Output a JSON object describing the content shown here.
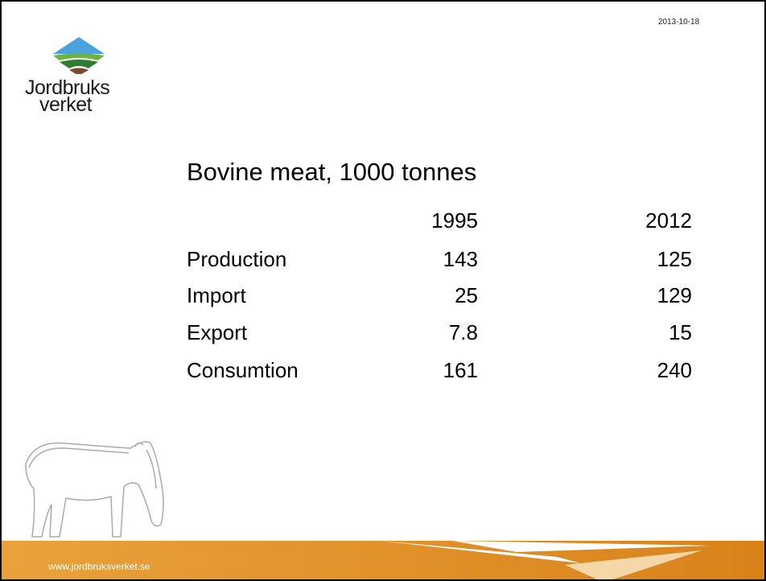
{
  "logo": {
    "line1": "Jordbruks",
    "line2": "verket"
  },
  "date": "2013-10-18",
  "title": "Bovine meat, 1000 tonnes",
  "table": {
    "header": [
      1995,
      2012
    ],
    "rows": [
      [
        "Production",
        143,
        125
      ],
      [
        "Import",
        25,
        129
      ],
      [
        "Export",
        7.8,
        15
      ],
      [
        "Consumtion",
        161,
        240
      ]
    ]
  },
  "footer": {
    "url": "www.jordbruksverket.se"
  }
}
